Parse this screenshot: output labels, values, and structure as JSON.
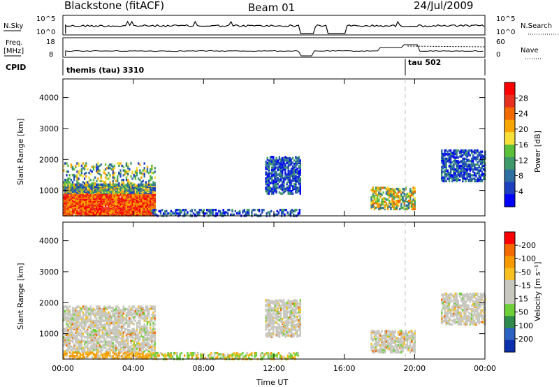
{
  "header": {
    "station": "Blackstone (fitACF)",
    "beam": "Beam 01",
    "date": "24/Jul/2009"
  },
  "top_panels": {
    "nsky_label": "N.Sky",
    "nsky_ticks": [
      "10^5",
      "10^0"
    ],
    "nsearch_label": "N.Search",
    "nsearch_ticks": [
      "10^5",
      "10^0"
    ],
    "freq_label": "Freq.",
    "freq_unit": "[MHz]",
    "freq_ticks": [
      "18",
      "8"
    ],
    "nave_label": "Nave",
    "nave_ticks": [
      "60",
      "0"
    ],
    "cpid_label": "CPID",
    "cpid_segments": [
      {
        "name": "themis (tau) 3310",
        "start_hour": 0.0
      },
      {
        "name": "tau 502",
        "start_hour": 19.5
      }
    ]
  },
  "chart_data": [
    {
      "type": "heatmap",
      "name": "Power",
      "xlabel": "",
      "ylabel": "Slant Range [km]",
      "x_ticks": [
        "00:00",
        "04:00",
        "08:00",
        "12:00",
        "16:00",
        "20:00",
        "00:00"
      ],
      "xlim_hours": [
        0,
        24
      ],
      "ylim_km": [
        180,
        4600
      ],
      "y_ticks": [
        1000,
        2000,
        3000,
        4000
      ],
      "colorbar": {
        "label": "Power [dB]",
        "tick_labels": [
          "4",
          "8",
          "12",
          "16",
          "20",
          "24",
          "28"
        ],
        "colors": [
          "#0000ff",
          "#1e3fbf",
          "#2f6ea0",
          "#3f9a6a",
          "#5cbf3a",
          "#f7e03a",
          "#f7a600",
          "#f26a00",
          "#e83020",
          "#ff0000"
        ]
      },
      "regions": [
        {
          "hours": [
            0.0,
            5.2
          ],
          "range_km": [
            200,
            1900
          ],
          "level": "high"
        },
        {
          "hours": [
            5.0,
            13.5
          ],
          "range_km": [
            180,
            400
          ],
          "level": "low"
        },
        {
          "hours": [
            11.5,
            13.5
          ],
          "range_km": [
            900,
            2100
          ],
          "level": "low"
        },
        {
          "hours": [
            17.5,
            20.0
          ],
          "range_km": [
            400,
            1100
          ],
          "level": "mid"
        },
        {
          "hours": [
            21.5,
            24.0
          ],
          "range_km": [
            1300,
            2300
          ],
          "level": "low"
        }
      ],
      "marker_hour": 19.5
    },
    {
      "type": "heatmap",
      "name": "Velocity",
      "xlabel": "Time UT",
      "ylabel": "Slant Range [km]",
      "x_ticks": [
        "00:00",
        "04:00",
        "08:00",
        "12:00",
        "16:00",
        "20:00",
        "00:00"
      ],
      "xlim_hours": [
        0,
        24
      ],
      "ylim_km": [
        180,
        4600
      ],
      "y_ticks": [
        1000,
        2000,
        3000,
        4000
      ],
      "colorbar": {
        "label": "Velocity [m s⁻¹]",
        "tick_labels": [
          "200",
          "100",
          "50",
          "15",
          "-15",
          "-50",
          "-100",
          "-200"
        ],
        "colors": [
          "#0c2fae",
          "#2c62c2",
          "#2e8a4a",
          "#6fcf3a",
          "#c8c8c0",
          "#c8c8c0",
          "#f7c020",
          "#f79a00",
          "#f26a00",
          "#ff0000"
        ]
      },
      "regions": [
        {
          "hours": [
            0.0,
            5.2
          ],
          "range_km": [
            200,
            1900
          ],
          "level": "ground"
        },
        {
          "hours": [
            5.0,
            13.5
          ],
          "range_km": [
            180,
            400
          ],
          "level": "mixed"
        },
        {
          "hours": [
            11.5,
            13.5
          ],
          "range_km": [
            900,
            2100
          ],
          "level": "ground"
        },
        {
          "hours": [
            17.5,
            20.0
          ],
          "range_km": [
            400,
            1100
          ],
          "level": "ground"
        },
        {
          "hours": [
            21.5,
            24.0
          ],
          "range_km": [
            1300,
            2300
          ],
          "level": "ground"
        }
      ],
      "marker_hour": 19.5
    }
  ]
}
